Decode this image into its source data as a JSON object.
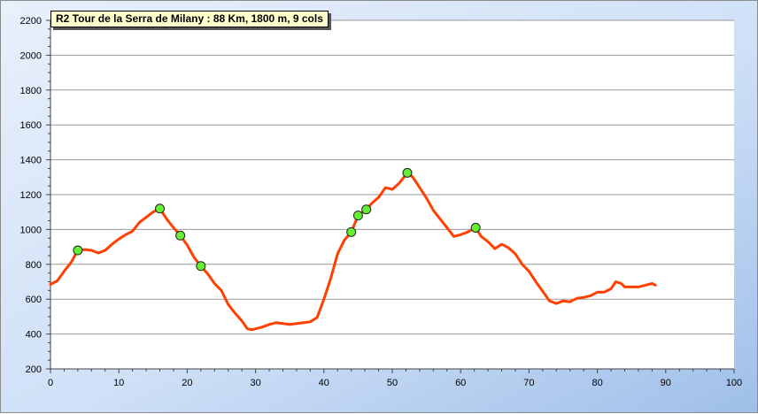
{
  "chart_data": {
    "type": "line",
    "title": "R2 Tour de la Serra de Milany : 88 Km, 1800 m, 9 cols",
    "xlabel": "",
    "ylabel": "",
    "xlim": [
      0,
      100
    ],
    "ylim": [
      200,
      2200
    ],
    "x_ticks": [
      0,
      10,
      20,
      30,
      40,
      50,
      60,
      70,
      80,
      90,
      100
    ],
    "y_ticks": [
      200,
      400,
      600,
      800,
      1000,
      1200,
      1400,
      1600,
      1800,
      2000,
      2200
    ],
    "grid": true,
    "line_color": "#ff4000",
    "marker_color": "#66ee33",
    "series": [
      {
        "values_xy": [
          [
            0,
            685
          ],
          [
            1,
            705
          ],
          [
            2,
            760
          ],
          [
            3,
            810
          ],
          [
            4,
            880
          ],
          [
            5,
            885
          ],
          [
            6,
            880
          ],
          [
            7,
            865
          ],
          [
            8,
            880
          ],
          [
            9,
            915
          ],
          [
            10,
            945
          ],
          [
            11,
            970
          ],
          [
            12,
            990
          ],
          [
            13,
            1040
          ],
          [
            14,
            1070
          ],
          [
            15,
            1100
          ],
          [
            16,
            1120
          ],
          [
            17,
            1060
          ],
          [
            18,
            1010
          ],
          [
            19,
            965
          ],
          [
            20,
            910
          ],
          [
            21,
            840
          ],
          [
            22,
            790
          ],
          [
            23,
            745
          ],
          [
            24,
            690
          ],
          [
            25,
            650
          ],
          [
            26,
            570
          ],
          [
            27,
            520
          ],
          [
            28,
            475
          ],
          [
            28.8,
            430
          ],
          [
            29.5,
            425
          ],
          [
            31,
            440
          ],
          [
            32,
            455
          ],
          [
            33,
            465
          ],
          [
            35,
            455
          ],
          [
            37,
            465
          ],
          [
            38,
            470
          ],
          [
            39,
            495
          ],
          [
            40,
            600
          ],
          [
            41,
            720
          ],
          [
            42,
            860
          ],
          [
            43,
            940
          ],
          [
            44,
            985
          ],
          [
            45,
            1080
          ],
          [
            46.2,
            1115
          ],
          [
            47,
            1150
          ],
          [
            48,
            1185
          ],
          [
            49,
            1240
          ],
          [
            50,
            1230
          ],
          [
            51,
            1265
          ],
          [
            52.2,
            1325
          ],
          [
            53,
            1300
          ],
          [
            54,
            1240
          ],
          [
            55,
            1180
          ],
          [
            56,
            1110
          ],
          [
            57,
            1060
          ],
          [
            58,
            1010
          ],
          [
            59,
            960
          ],
          [
            60,
            970
          ],
          [
            61,
            985
          ],
          [
            62.2,
            1010
          ],
          [
            63,
            960
          ],
          [
            64,
            930
          ],
          [
            65,
            890
          ],
          [
            66,
            915
          ],
          [
            67,
            895
          ],
          [
            68,
            860
          ],
          [
            69,
            800
          ],
          [
            70,
            760
          ],
          [
            71,
            700
          ],
          [
            72,
            645
          ],
          [
            73,
            590
          ],
          [
            74,
            575
          ],
          [
            75,
            590
          ],
          [
            76,
            585
          ],
          [
            77,
            605
          ],
          [
            78,
            610
          ],
          [
            79,
            620
          ],
          [
            80,
            640
          ],
          [
            81,
            640
          ],
          [
            82,
            660
          ],
          [
            82.7,
            700
          ],
          [
            83.5,
            690
          ],
          [
            84,
            670
          ],
          [
            86,
            670
          ],
          [
            87,
            680
          ],
          [
            88,
            690
          ],
          [
            88.5,
            680
          ]
        ]
      }
    ],
    "markers_xy": [
      [
        4,
        880
      ],
      [
        16,
        1120
      ],
      [
        19,
        965
      ],
      [
        22,
        790
      ],
      [
        44,
        985
      ],
      [
        45,
        1080
      ],
      [
        46.2,
        1115
      ],
      [
        52.2,
        1325
      ],
      [
        62.2,
        1010
      ]
    ]
  }
}
